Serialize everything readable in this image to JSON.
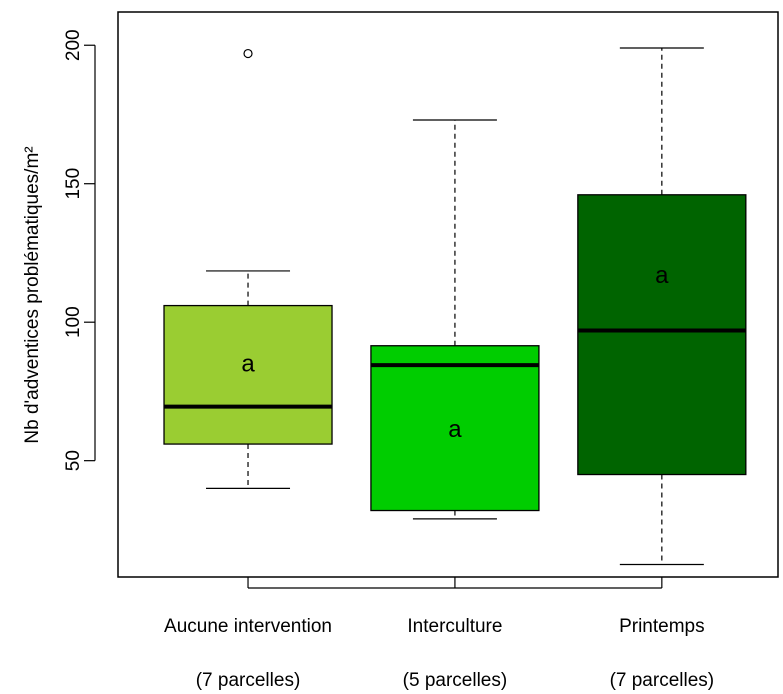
{
  "chart_data": {
    "type": "box",
    "ylabel": "Nb d'adventices problématiques/m²",
    "ylim": [
      8,
      212
    ],
    "yticks": [
      50,
      100,
      150,
      200
    ],
    "grid": false,
    "categories": [
      {
        "label": "Aucune intervention",
        "n_label": "(7 parcelles)",
        "letter": "a",
        "color": "#9acd32",
        "min": 40,
        "q1": 56,
        "median": 69.5,
        "q3": 106,
        "max": 118.5,
        "outliers": [
          197
        ],
        "letter_y": 85
      },
      {
        "label": "Interculture",
        "n_label": "(5 parcelles)",
        "letter": "a",
        "color": "#00cd00",
        "min": 29,
        "q1": 32,
        "median": 84.5,
        "q3": 91.5,
        "max": 173,
        "outliers": [],
        "letter_y": 61.5
      },
      {
        "label": "Printemps",
        "n_label": "(7 parcelles)",
        "letter": "a",
        "color": "#006400",
        "min": 12.5,
        "q1": 45,
        "median": 97,
        "q3": 146,
        "max": 199,
        "outliers": [],
        "letter_y": 117
      }
    ]
  }
}
